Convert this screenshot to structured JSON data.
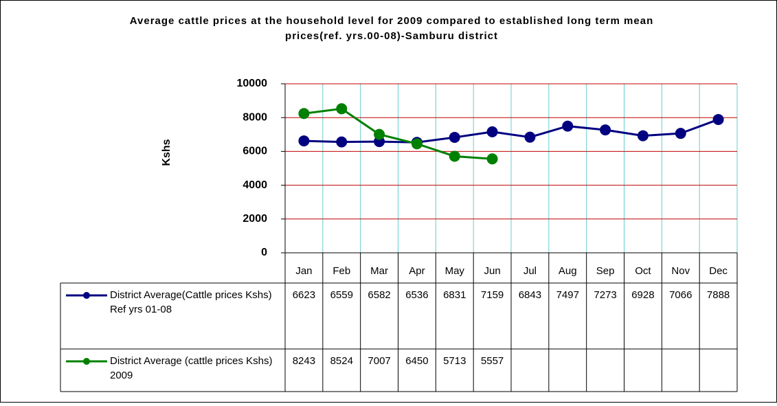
{
  "chart_data": {
    "type": "line",
    "title": "Average cattle prices at the household level for 2009 compared to established long term mean prices(ref. yrs.00-08)-Samburu district",
    "y_label": "Kshs",
    "categories": [
      "Jan",
      "Feb",
      "Mar",
      "Apr",
      "May",
      "Jun",
      "Jul",
      "Aug",
      "Sep",
      "Oct",
      "Nov",
      "Dec"
    ],
    "series": [
      {
        "name": "District Average(Cattle prices Kshs) Ref yrs 01-08",
        "color": "#000080",
        "values": [
          6623,
          6559,
          6582,
          6536,
          6831,
          7159,
          6843,
          7497,
          7273,
          6928,
          7066,
          7888
        ]
      },
      {
        "name": "District Average (cattle prices Kshs) 2009",
        "color": "#008000",
        "values": [
          8243,
          8524,
          7007,
          6450,
          5713,
          5557,
          null,
          null,
          null,
          null,
          null,
          null
        ]
      }
    ],
    "ylim": [
      0,
      10000
    ],
    "yticks": [
      0,
      2000,
      4000,
      6000,
      8000,
      10000
    ],
    "grid": true
  }
}
